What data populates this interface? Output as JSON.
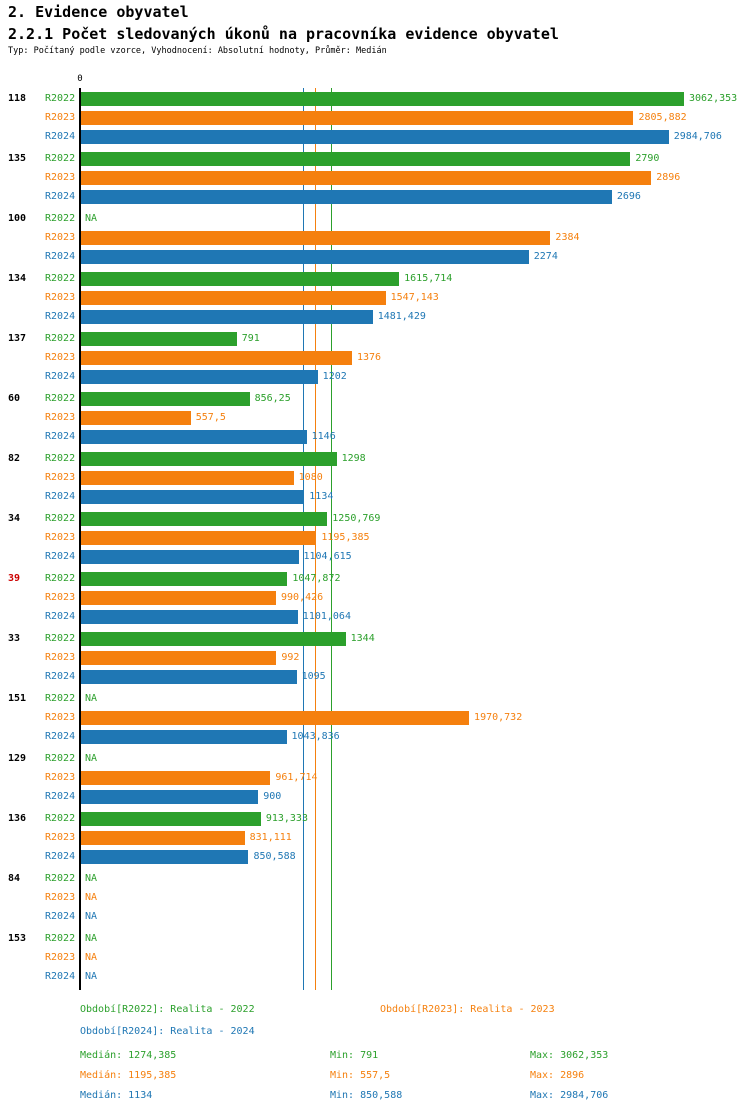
{
  "header": {
    "title": "2. Evidence obyvatel",
    "subtitle": "2.2.1 Počet sledovaných úkonů na pracovníka evidence obyvatel",
    "meta": "Typ: Počítaný podle vzorce, Vyhodnocení: Absolutní hodnoty, Průměr: Medián"
  },
  "chart_data": {
    "type": "bar",
    "orientation": "horizontal",
    "title": "2.2.1 Počet sledovaných úkonů na pracovníka evidence obyvatel",
    "x_axis": {
      "zero_label": "0",
      "max": 3062.353,
      "xlim": [
        0,
        3062.353
      ],
      "grid": false
    },
    "legend_position": "bottom",
    "series": [
      {
        "key": "R2022",
        "legend": "Období[R2022]: Realita - 2022",
        "color": "#2ca02c",
        "median": 1274.385,
        "stats": {
          "median": "Medián: 1274,385",
          "min": "Min: 791",
          "max": "Max: 3062,353"
        }
      },
      {
        "key": "R2023",
        "legend": "Období[R2023]: Realita - 2023",
        "color": "#f5800e",
        "median": 1195.385,
        "stats": {
          "median": "Medián: 1195,385",
          "min": "Min: 557,5",
          "max": "Max: 2896"
        }
      },
      {
        "key": "R2024",
        "legend": "Období[R2024]: Realita - 2024",
        "color": "#1f77b4",
        "median": 1134,
        "stats": {
          "median": "Medián: 1134",
          "min": "Min: 850,588",
          "max": "Max: 2984,706"
        }
      }
    ],
    "groups": [
      {
        "id": "118",
        "id_color": "#000000",
        "values": [
          3062.353,
          2805.882,
          2984.706
        ],
        "value_labels": [
          "3062,353",
          "2805,882",
          "2984,706"
        ]
      },
      {
        "id": "135",
        "id_color": "#000000",
        "values": [
          2790,
          2896,
          2696
        ],
        "value_labels": [
          "2790",
          "2896",
          "2696"
        ]
      },
      {
        "id": "100",
        "id_color": "#000000",
        "values": [
          null,
          2384,
          2274
        ],
        "value_labels": [
          "NA",
          "2384",
          "2274"
        ]
      },
      {
        "id": "134",
        "id_color": "#000000",
        "values": [
          1615.714,
          1547.143,
          1481.429
        ],
        "value_labels": [
          "1615,714",
          "1547,143",
          "1481,429"
        ]
      },
      {
        "id": "137",
        "id_color": "#000000",
        "values": [
          791,
          1376,
          1202
        ],
        "value_labels": [
          "791",
          "1376",
          "1202"
        ]
      },
      {
        "id": "60",
        "id_color": "#000000",
        "values": [
          856.25,
          557.5,
          1146
        ],
        "value_labels": [
          "856,25",
          "557,5",
          "1146"
        ]
      },
      {
        "id": "82",
        "id_color": "#000000",
        "values": [
          1298,
          1080,
          1134
        ],
        "value_labels": [
          "1298",
          "1080",
          "1134"
        ]
      },
      {
        "id": "34",
        "id_color": "#000000",
        "values": [
          1250.769,
          1195.385,
          1104.615
        ],
        "value_labels": [
          "1250,769",
          "1195,385",
          "1104,615"
        ]
      },
      {
        "id": "39",
        "id_color": "#cc0000",
        "values": [
          1047.872,
          990.426,
          1101.064
        ],
        "value_labels": [
          "1047,872",
          "990,426",
          "1101,064"
        ]
      },
      {
        "id": "33",
        "id_color": "#000000",
        "values": [
          1344,
          992,
          1095
        ],
        "value_labels": [
          "1344",
          "992",
          "1095"
        ]
      },
      {
        "id": "151",
        "id_color": "#000000",
        "values": [
          null,
          1970.732,
          1043.836
        ],
        "value_labels": [
          "NA",
          "1970,732",
          "1043,836"
        ]
      },
      {
        "id": "129",
        "id_color": "#000000",
        "values": [
          null,
          961.714,
          900
        ],
        "value_labels": [
          "NA",
          "961,714",
          "900"
        ]
      },
      {
        "id": "136",
        "id_color": "#000000",
        "values": [
          913.333,
          831.111,
          850.588
        ],
        "value_labels": [
          "913,333",
          "831,111",
          "850,588"
        ]
      },
      {
        "id": "84",
        "id_color": "#000000",
        "values": [
          null,
          null,
          null
        ],
        "value_labels": [
          "NA",
          "NA",
          "NA"
        ]
      },
      {
        "id": "153",
        "id_color": "#000000",
        "values": [
          null,
          null,
          null
        ],
        "value_labels": [
          "NA",
          "NA",
          "NA"
        ]
      }
    ]
  }
}
